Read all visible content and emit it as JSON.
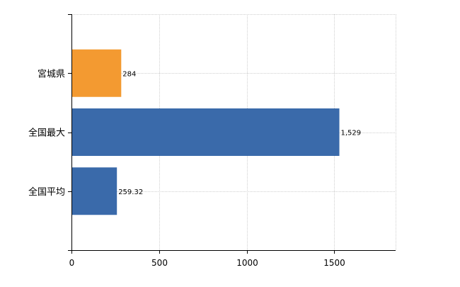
{
  "chart_data": {
    "type": "bar",
    "orientation": "horizontal",
    "title": "",
    "xlabel": "",
    "ylabel": "",
    "categories": [
      "宮城県",
      "全国最大",
      "全国平均"
    ],
    "values": [
      284,
      1529,
      259.32
    ],
    "value_labels": [
      "284",
      "1,529",
      "259.32"
    ],
    "colors": [
      "#f39a31",
      "#3a6aaa",
      "#3a6aaa"
    ],
    "xlim": [
      0,
      1850
    ],
    "xticks": [
      0,
      500,
      1000,
      1500
    ],
    "xtick_labels": [
      "0",
      "500",
      "1000",
      "1500"
    ],
    "grid": true,
    "legend": "none"
  }
}
